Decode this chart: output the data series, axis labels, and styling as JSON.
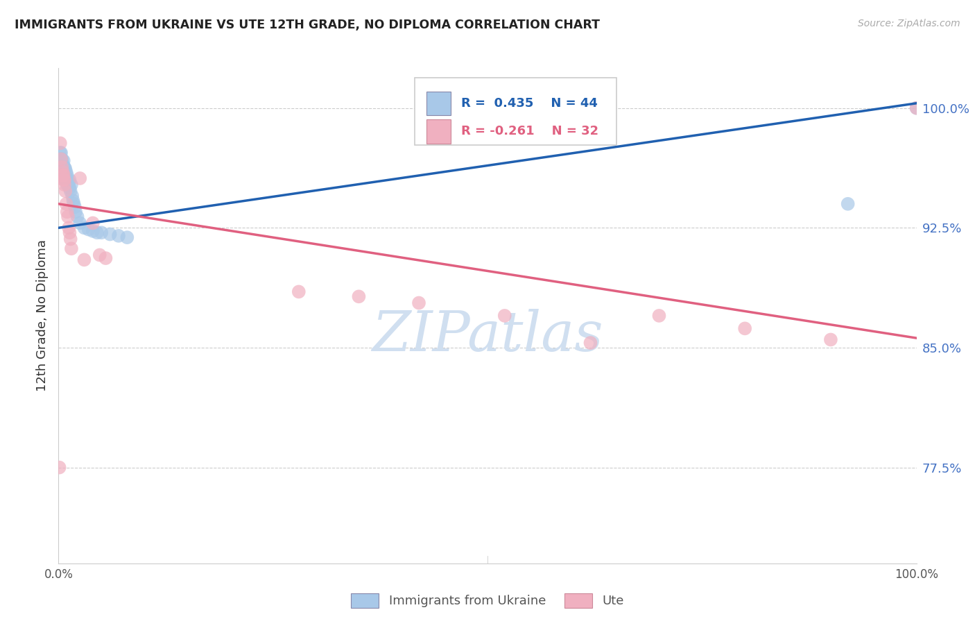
{
  "title": "IMMIGRANTS FROM UKRAINE VS UTE 12TH GRADE, NO DIPLOMA CORRELATION CHART",
  "source": "Source: ZipAtlas.com",
  "ylabel": "12th Grade, No Diploma",
  "ytick_labels": [
    "77.5%",
    "85.0%",
    "92.5%",
    "100.0%"
  ],
  "ytick_values": [
    0.775,
    0.85,
    0.925,
    1.0
  ],
  "legend_blue_r": "R =  0.435",
  "legend_blue_n": "N = 44",
  "legend_pink_r": "R = -0.261",
  "legend_pink_n": "N = 32",
  "blue_color": "#a8c8e8",
  "pink_color": "#f0b0c0",
  "blue_line_color": "#2060b0",
  "pink_line_color": "#e06080",
  "watermark": "ZIPatlas",
  "watermark_color": "#d0dff0",
  "blue_scatter_x": [
    0.001,
    0.002,
    0.002,
    0.003,
    0.003,
    0.004,
    0.004,
    0.005,
    0.005,
    0.006,
    0.006,
    0.006,
    0.007,
    0.007,
    0.008,
    0.008,
    0.008,
    0.009,
    0.009,
    0.01,
    0.01,
    0.011,
    0.012,
    0.013,
    0.013,
    0.014,
    0.015,
    0.016,
    0.017,
    0.018,
    0.019,
    0.02,
    0.022,
    0.025,
    0.03,
    0.035,
    0.04,
    0.045,
    0.05,
    0.06,
    0.07,
    0.08,
    0.92,
    1.0
  ],
  "blue_scatter_y": [
    0.963,
    0.968,
    0.972,
    0.968,
    0.972,
    0.963,
    0.968,
    0.96,
    0.965,
    0.96,
    0.963,
    0.967,
    0.958,
    0.963,
    0.955,
    0.958,
    0.962,
    0.955,
    0.96,
    0.952,
    0.958,
    0.955,
    0.952,
    0.95,
    0.955,
    0.948,
    0.952,
    0.945,
    0.942,
    0.94,
    0.938,
    0.935,
    0.932,
    0.928,
    0.925,
    0.924,
    0.923,
    0.922,
    0.922,
    0.921,
    0.92,
    0.919,
    0.94,
    1.0
  ],
  "pink_scatter_x": [
    0.001,
    0.002,
    0.003,
    0.004,
    0.005,
    0.005,
    0.006,
    0.006,
    0.007,
    0.007,
    0.008,
    0.009,
    0.01,
    0.011,
    0.012,
    0.013,
    0.014,
    0.015,
    0.025,
    0.03,
    0.04,
    0.048,
    0.055,
    0.28,
    0.35,
    0.42,
    0.52,
    0.62,
    0.7,
    0.8,
    0.9,
    1.0
  ],
  "pink_scatter_y": [
    0.775,
    0.978,
    0.968,
    0.963,
    0.96,
    0.958,
    0.955,
    0.958,
    0.952,
    0.955,
    0.948,
    0.94,
    0.935,
    0.932,
    0.925,
    0.922,
    0.918,
    0.912,
    0.956,
    0.905,
    0.928,
    0.908,
    0.906,
    0.885,
    0.882,
    0.878,
    0.87,
    0.853,
    0.87,
    0.862,
    0.855,
    1.0
  ],
  "blue_trend_start_x": 0.0,
  "blue_trend_end_x": 1.0,
  "blue_trend_start_y": 0.925,
  "blue_trend_end_y": 1.003,
  "pink_trend_start_x": 0.0,
  "pink_trend_end_x": 1.0,
  "pink_trend_start_y": 0.94,
  "pink_trend_end_y": 0.856,
  "xmin": 0.0,
  "xmax": 1.0,
  "ymin": 0.715,
  "ymax": 1.025
}
